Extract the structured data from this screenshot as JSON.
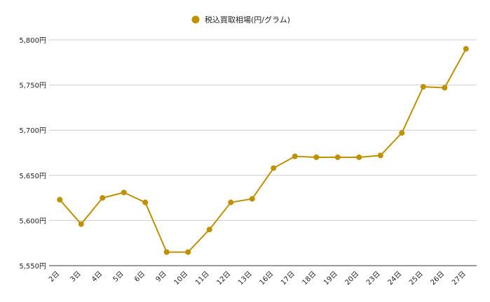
{
  "chart_data": {
    "type": "line",
    "title": "",
    "xlabel": "",
    "ylabel": "",
    "categories": [
      "2日",
      "3日",
      "4日",
      "5日",
      "6日",
      "9日",
      "10日",
      "11日",
      "12日",
      "13日",
      "16日",
      "17日",
      "18日",
      "19日",
      "20日",
      "23日",
      "24日",
      "25日",
      "26日",
      "27日"
    ],
    "series": [
      {
        "name": "税込買取相場(円/グラム)",
        "values": [
          5623,
          5596,
          5625,
          5631,
          5620,
          5565,
          5565,
          5590,
          5620,
          5624,
          5658,
          5671,
          5670,
          5670,
          5670,
          5672,
          5697,
          5748,
          5747,
          5790
        ],
        "color": "#bf9000"
      }
    ],
    "ylim": [
      5550,
      5800
    ],
    "yticks": [
      5550,
      5600,
      5650,
      5700,
      5750,
      5800
    ],
    "ytick_labels": [
      "5,550円",
      "5,600円",
      "5,650円",
      "5,700円",
      "5,750円",
      "5,800円"
    ],
    "grid": true,
    "legend_position": "top-center"
  }
}
